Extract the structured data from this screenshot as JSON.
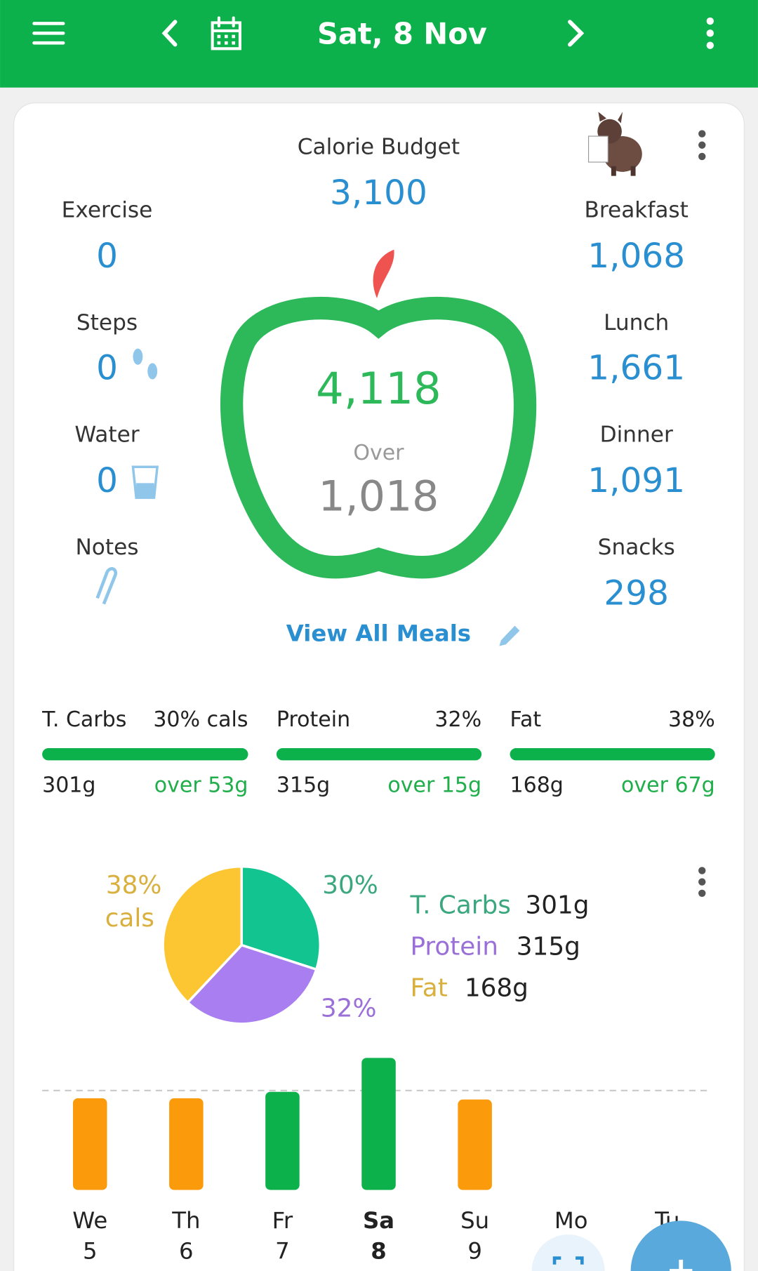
{
  "header": {
    "date": "Sat, 8 Nov"
  },
  "budget": {
    "label": "Calorie Budget",
    "value": "3,100"
  },
  "left": [
    {
      "label": "Exercise",
      "value": "0"
    },
    {
      "label": "Steps",
      "value": "0"
    },
    {
      "label": "Water",
      "value": "0"
    },
    {
      "label": "Notes"
    }
  ],
  "right": [
    {
      "label": "Breakfast",
      "value": "1,068"
    },
    {
      "label": "Lunch",
      "value": "1,661"
    },
    {
      "label": "Dinner",
      "value": "1,091"
    },
    {
      "label": "Snacks",
      "value": "298"
    }
  ],
  "center": {
    "eaten": "4,118",
    "status": "Over",
    "difference": "1,018"
  },
  "view_all": "View All Meals",
  "macros": [
    {
      "name": "T. Carbs",
      "pct": "30% cals",
      "grams": "301g",
      "over": "over 53g"
    },
    {
      "name": "Protein",
      "pct": "32%",
      "grams": "315g",
      "over": "over 15g"
    },
    {
      "name": "Fat",
      "pct": "38%",
      "grams": "168g",
      "over": "over 67g"
    }
  ],
  "macro_pie": {
    "type": "pie",
    "names": [
      "T. Carbs",
      "Protein",
      "Fat"
    ],
    "values": [
      30,
      32,
      38
    ],
    "value_labels": [
      "30%",
      "32%",
      "38%"
    ],
    "fat_note": "cals",
    "amounts": [
      "301g",
      "315g",
      "168g"
    ],
    "colors": [
      "#12c48f",
      "#a87ef0",
      "#fcc633"
    ],
    "label_colors": [
      "#3aa77e",
      "#9b6fd8",
      "#d9b03e"
    ]
  },
  "week": {
    "type": "bar",
    "days": [
      "We",
      "Th",
      "Fr",
      "Sa",
      "Su",
      "Mo",
      "Tu"
    ],
    "dates": [
      "5",
      "6",
      "7",
      "8",
      "9",
      null,
      null
    ],
    "values": [
      2860,
      2860,
      3060,
      4118,
      2820,
      null,
      null
    ],
    "colors": [
      "#fb9a0a",
      "#fb9a0a",
      "#0db14b",
      "#0db14b",
      "#fb9a0a",
      null,
      null
    ],
    "line": 3100,
    "ylim": [
      0,
      4500
    ]
  }
}
